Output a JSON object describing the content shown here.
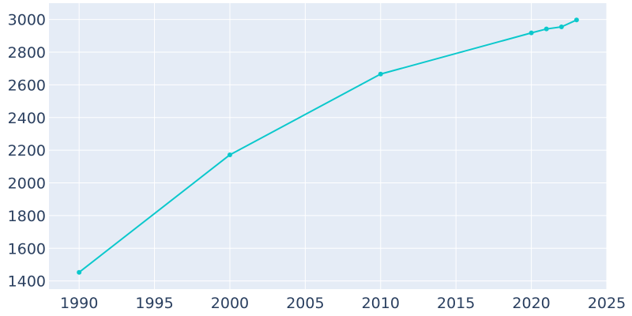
{
  "chart_data": {
    "type": "line",
    "title": "",
    "xlabel": "",
    "ylabel": "",
    "xlim": [
      1988,
      2025
    ],
    "ylim": [
      1350,
      3100
    ],
    "x_ticks": [
      1990,
      1995,
      2000,
      2005,
      2010,
      2015,
      2020,
      2025
    ],
    "y_ticks": [
      1400,
      1600,
      1800,
      2000,
      2200,
      2400,
      2600,
      2800,
      3000
    ],
    "grid": true,
    "legend": "none",
    "series": [
      {
        "x": [
          1990,
          2000,
          2010,
          2020,
          2021,
          2022,
          2023
        ],
        "y": [
          1453,
          2172,
          2666,
          2918,
          2942,
          2955,
          2997
        ],
        "color": "#0bc8cc"
      }
    ]
  },
  "colors": {
    "plot_background": "#e5ecf6",
    "grid": "#ffffff",
    "tick_text": "#2a3f5f",
    "series": "#0bc8cc"
  }
}
